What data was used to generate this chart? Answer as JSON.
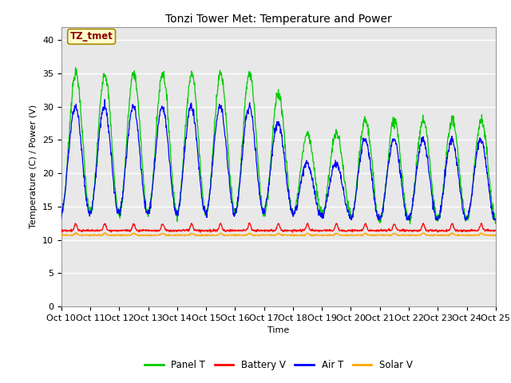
{
  "title": "Tonzi Tower Met: Temperature and Power",
  "xlabel": "Time",
  "ylabel": "Temperature (C) / Power (V)",
  "ylim": [
    0,
    42
  ],
  "yticks": [
    0,
    5,
    10,
    15,
    20,
    25,
    30,
    35,
    40
  ],
  "xtick_labels": [
    "Oct 10",
    "Oct 11",
    "Oct 12",
    "Oct 13",
    "Oct 14",
    "Oct 15",
    "Oct 16",
    "Oct 17",
    "Oct 18",
    "Oct 19",
    "Oct 20",
    "Oct 21",
    "Oct 22",
    "Oct 23",
    "Oct 24",
    "Oct 25"
  ],
  "annotation_text": "TZ_tmet",
  "annotation_color": "#8B0000",
  "annotation_bg": "#FFFFCC",
  "panel_color": "#00CC00",
  "battery_color": "#FF0000",
  "air_color": "#0000FF",
  "solar_color": "#FFA500",
  "bg_color": "#E8E8E8",
  "legend_labels": [
    "Panel T",
    "Battery V",
    "Air T",
    "Solar V"
  ],
  "title_fontsize": 10,
  "axis_fontsize": 8,
  "n_days": 15,
  "pts_per_day": 96
}
